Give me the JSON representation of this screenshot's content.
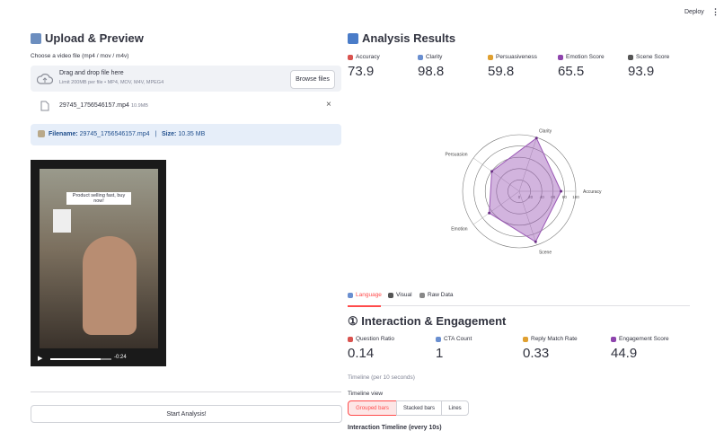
{
  "header": {
    "deploy": "Deploy"
  },
  "upload": {
    "title": "Upload & Preview",
    "label": "Choose a video file (mp4 / mov / m4v)",
    "dropzone": {
      "title": "Drag and drop file here",
      "hint": "Limit 200MB per file • MP4, MOV, M4V, MPEG4",
      "button": "Browse files"
    },
    "file": {
      "name": "29745_1756546157.mp4",
      "size": "10.9MB"
    },
    "info": {
      "filename_label": "Filename:",
      "filename": "29745_1756546157.mp4",
      "separator": "|",
      "size_label": "Size:",
      "size": "10.35 MB"
    },
    "video": {
      "caption": "Product selling fast, buy now!",
      "time": "-0:24"
    },
    "start_button": "Start Analysis!"
  },
  "results": {
    "title": "Analysis Results",
    "metrics": [
      {
        "label": "Accuracy",
        "value": 73.9
      },
      {
        "label": "Clarity",
        "value": 98.8
      },
      {
        "label": "Persuasiveness",
        "value": 59.8
      },
      {
        "label": "Emotion Score",
        "value": 65.5
      },
      {
        "label": "Scene Score",
        "value": 93.9
      }
    ],
    "radar": {
      "type": "radar",
      "categories": [
        "Accuracy",
        "Clarity",
        "Persuasion",
        "Emotion",
        "Scene"
      ],
      "values": [
        73.9,
        98.8,
        59.8,
        65.5,
        93.9
      ],
      "rlim": [
        0,
        100
      ],
      "rticks": [
        0,
        20,
        40,
        60,
        80,
        100
      ],
      "color": "#9b59b6"
    },
    "tabs": [
      "Language",
      "Visual",
      "Raw Data"
    ],
    "section": {
      "title": "① Interaction & Engagement",
      "metrics": [
        {
          "label": "Question Ratio",
          "value": 0.14
        },
        {
          "label": "CTA Count",
          "value": 1
        },
        {
          "label": "Reply Match Rate",
          "value": 0.33
        },
        {
          "label": "Engagement Score",
          "value": 44.9
        }
      ],
      "note": "Timeline (per 10 seconds)",
      "view_label": "Timeline view",
      "view_options": [
        "Grouped bars",
        "Stacked bars",
        "Lines"
      ],
      "chart_title": "Interaction Timeline (every 10s)"
    }
  }
}
